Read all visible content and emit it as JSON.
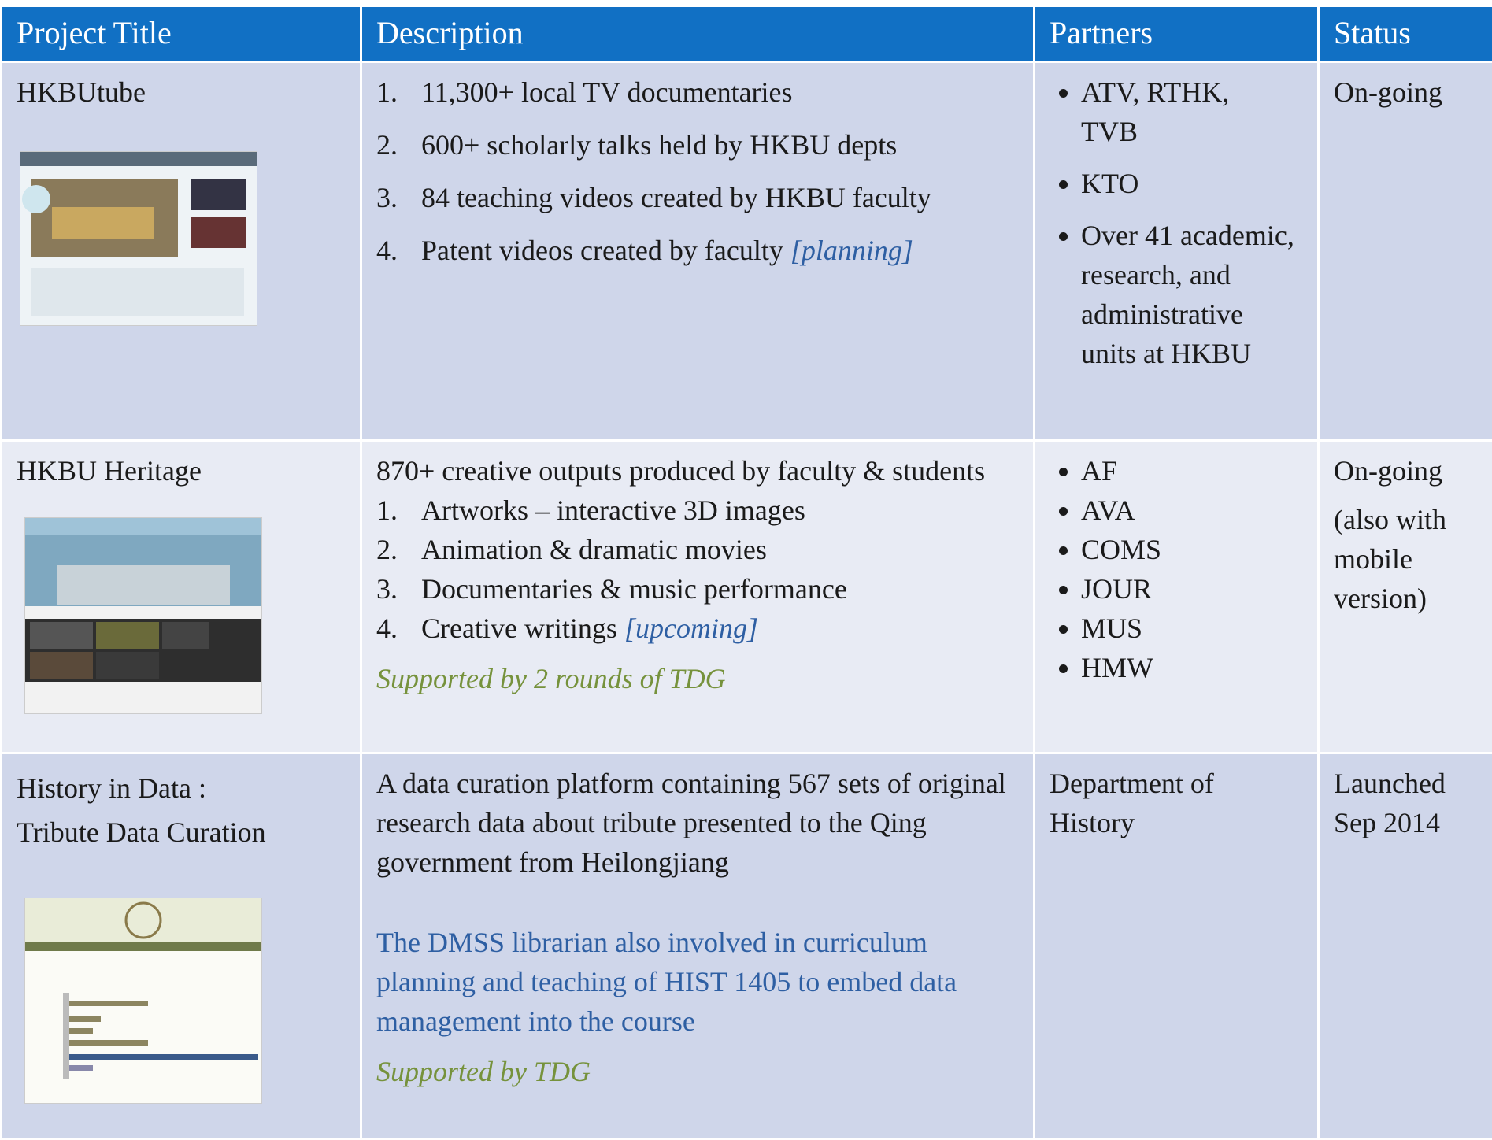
{
  "table": {
    "headers": [
      "Project Title",
      "Description",
      "Partners",
      "Status"
    ],
    "rows": [
      {
        "title": [
          "HKBUtube"
        ],
        "description": {
          "items": [
            {
              "number": "1.",
              "text": "11,300+ local TV documentaries"
            },
            {
              "number": "2.",
              "text": "600+ scholarly talks held by HKBU depts"
            },
            {
              "number": "3.",
              "text": "84 teaching videos created by HKBU faculty"
            },
            {
              "number": "4.",
              "text": "Patent videos created by faculty",
              "note": "[planning]"
            }
          ]
        },
        "partners": [
          "ATV, RTHK, TVB",
          "KTO",
          "Over 41 academic, research, and administrative units at HKBU"
        ],
        "status": [
          "On-going"
        ]
      },
      {
        "title": [
          "HKBU Heritage"
        ],
        "description": {
          "intro": "870+ creative outputs produced by faculty & students",
          "items": [
            {
              "number": "1.",
              "text": "Artworks – interactive 3D images"
            },
            {
              "number": "2.",
              "text": "Animation & dramatic movies"
            },
            {
              "number": "3.",
              "text": "Documentaries & music performance"
            },
            {
              "number": "4.",
              "text": "Creative writings",
              "note": "[upcoming]"
            }
          ],
          "support": "Supported by 2 rounds of TDG"
        },
        "partners": [
          "AF",
          "AVA",
          "COMS",
          "JOUR",
          "MUS",
          "HMW"
        ],
        "status": [
          "On-going",
          "(also with mobile version)"
        ]
      },
      {
        "title": [
          "History in Data :",
          "Tribute Data Curation"
        ],
        "description": {
          "intro": "A data curation platform containing 567 sets of original research data about tribute presented to the Qing government from Heilongjiang",
          "note": "The DMSS librarian also involved in curriculum planning and teaching of HIST 1405 to embed data management into the course",
          "support": "Supported by TDG"
        },
        "partners_text": "Department of History",
        "status": [
          "Launched Sep 2014"
        ]
      }
    ]
  }
}
